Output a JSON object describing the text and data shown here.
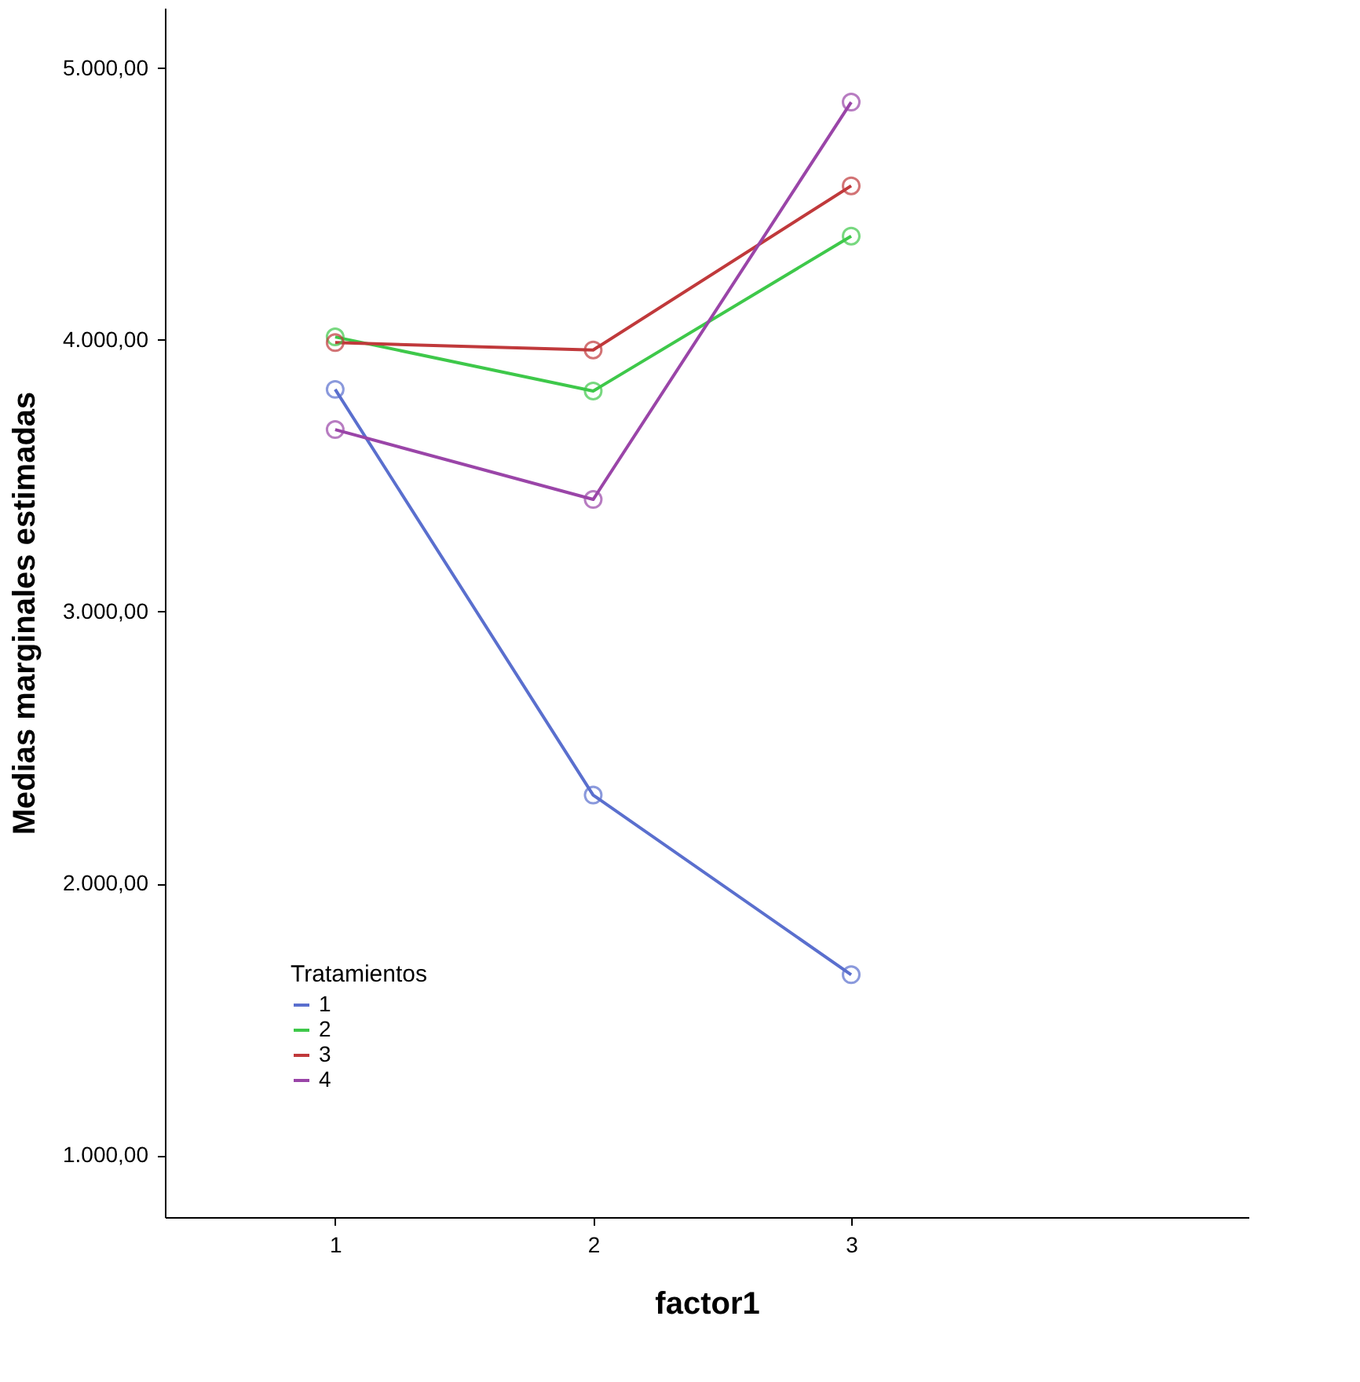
{
  "chart_data": {
    "type": "line",
    "xlabel": "factor1",
    "ylabel": "Medias marginales estimadas",
    "legend_title": "Tratamientos",
    "legend": "bottom left",
    "grid": false,
    "marker": "circle",
    "line_style": "solid",
    "categories": [
      "1",
      "2",
      "3"
    ],
    "ylim": [
      772,
      5222
    ],
    "yticks": [
      {
        "value": 1000,
        "label": "1.000,00"
      },
      {
        "value": 2000,
        "label": "2.000,00"
      },
      {
        "value": 3000,
        "label": "3.000,00"
      },
      {
        "value": 4000,
        "label": "4.000,00"
      },
      {
        "value": 5000,
        "label": "5.000,00"
      }
    ],
    "series": [
      {
        "name": "1",
        "color": "#5a6fce",
        "values": [
          3818,
          2325,
          1664
        ]
      },
      {
        "name": "2",
        "color": "#3ec84a",
        "values": [
          4011,
          3812,
          4382
        ]
      },
      {
        "name": "3",
        "color": "#c0393b",
        "values": [
          3990,
          3963,
          4567
        ]
      },
      {
        "name": "4",
        "color": "#9a45a8",
        "values": [
          3670,
          3413,
          4875
        ]
      }
    ]
  }
}
